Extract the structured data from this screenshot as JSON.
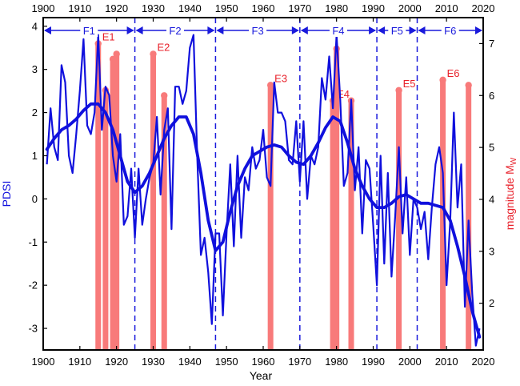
{
  "chart_data": {
    "type": "line",
    "xlabel": "Year",
    "ylabel_left": "PDSI",
    "ylabel_right": {
      "main": "magnitude M",
      "sub": "W"
    },
    "xlim": [
      1900,
      2020
    ],
    "ylim_left": [
      -3.5,
      4.2
    ],
    "ylim_right": [
      1.1,
      7.5
    ],
    "x_ticks": [
      "1900",
      "1910",
      "1920",
      "1930",
      "1940",
      "1950",
      "1960",
      "1970",
      "1980",
      "1990",
      "2000",
      "2010",
      "2020"
    ],
    "y_left_ticks": [
      "-3",
      "-2",
      "-1",
      "0",
      "1",
      "2",
      "3",
      "4"
    ],
    "y_right_ticks": [
      "2",
      "3",
      "4",
      "5",
      "6",
      "7"
    ],
    "colors": {
      "pdsi": "#1010dd",
      "event": "#f87a7a",
      "event_label": "#e8202a",
      "phase": "#1a1adc"
    },
    "phases": [
      {
        "label": "F1",
        "start": 1900,
        "end": 1925
      },
      {
        "label": "F2",
        "start": 1925,
        "end": 1947
      },
      {
        "label": "F3",
        "start": 1947,
        "end": 1970
      },
      {
        "label": "F4",
        "start": 1970,
        "end": 1991
      },
      {
        "label": "F5",
        "start": 1991,
        "end": 2002
      },
      {
        "label": "F6",
        "start": 2002,
        "end": 2020
      }
    ],
    "events": [
      {
        "label": "E1",
        "year": 1915,
        "magnitude": 7.0
      },
      {
        "label": "",
        "year": 1917,
        "magnitude": 6.1
      },
      {
        "label": "",
        "year": 1919,
        "magnitude": 6.7
      },
      {
        "label": "",
        "year": 1920,
        "magnitude": 6.8
      },
      {
        "label": "E2",
        "year": 1930,
        "magnitude": 6.8
      },
      {
        "label": "",
        "year": 1933,
        "magnitude": 6.0
      },
      {
        "label": "E3",
        "year": 1962,
        "magnitude": 6.2
      },
      {
        "label": "E4",
        "year": 1979,
        "magnitude": 5.9
      },
      {
        "label": "",
        "year": 1980,
        "magnitude": 6.9
      },
      {
        "label": "",
        "year": 1984,
        "magnitude": 5.9
      },
      {
        "label": "E5",
        "year": 1997,
        "magnitude": 6.1
      },
      {
        "label": "E6",
        "year": 2009,
        "magnitude": 6.3
      },
      {
        "label": "",
        "year": 2016,
        "magnitude": 6.2
      }
    ],
    "series": [
      {
        "name": "PDSI annual",
        "x": [
          1901,
          1902,
          1903,
          1904,
          1905,
          1906,
          1907,
          1908,
          1909,
          1910,
          1911,
          1912,
          1913,
          1914,
          1915,
          1916,
          1917,
          1918,
          1919,
          1920,
          1921,
          1922,
          1923,
          1924,
          1925,
          1926,
          1927,
          1928,
          1929,
          1930,
          1931,
          1932,
          1933,
          1934,
          1935,
          1936,
          1937,
          1938,
          1939,
          1940,
          1941,
          1942,
          1943,
          1944,
          1945,
          1946,
          1947,
          1948,
          1949,
          1950,
          1951,
          1952,
          1953,
          1954,
          1955,
          1956,
          1957,
          1958,
          1959,
          1960,
          1961,
          1962,
          1963,
          1964,
          1965,
          1966,
          1967,
          1968,
          1969,
          1970,
          1971,
          1972,
          1973,
          1974,
          1975,
          1976,
          1977,
          1978,
          1979,
          1980,
          1981,
          1982,
          1983,
          1984,
          1985,
          1986,
          1987,
          1988,
          1989,
          1990,
          1991,
          1992,
          1993,
          1994,
          1995,
          1996,
          1997,
          1998,
          1999,
          2000,
          2001,
          2002,
          2003,
          2004,
          2005,
          2006,
          2007,
          2008,
          2009,
          2010,
          2011,
          2012,
          2013,
          2014,
          2015,
          2016,
          2017,
          2018,
          2019
        ],
        "values": [
          0.8,
          2.1,
          1.2,
          0.9,
          3.1,
          2.7,
          1.0,
          0.6,
          1.5,
          2.5,
          3.7,
          1.7,
          1.5,
          2.0,
          3.8,
          1.6,
          2.6,
          2.4,
          1.0,
          0.4,
          1.5,
          -0.6,
          -0.4,
          0.7,
          -0.9,
          0.7,
          -0.6,
          0.0,
          0.5,
          0.8,
          1.9,
          0.1,
          1.6,
          2.1,
          -0.7,
          2.6,
          2.6,
          2.2,
          2.5,
          3.5,
          3.8,
          1.0,
          -1.3,
          -0.9,
          -1.7,
          -2.9,
          -0.8,
          -0.8,
          -2.7,
          -0.8,
          0.8,
          -1.1,
          1.0,
          -0.9,
          0.5,
          0.2,
          1.2,
          0.7,
          0.9,
          1.6,
          0.5,
          0.3,
          2.7,
          2.0,
          2.0,
          1.8,
          0.9,
          0.8,
          1.8,
          0.4,
          1.8,
          0.0,
          1.0,
          0.8,
          1.2,
          2.8,
          2.3,
          3.3,
          2.1,
          3.8,
          2.3,
          0.3,
          0.6,
          2.3,
          0.2,
          1.2,
          -0.8,
          0.9,
          0.7,
          -0.6,
          -2.0,
          1.0,
          -1.5,
          0.6,
          -1.8,
          -0.4,
          1.2,
          -0.8,
          0.5,
          -1.3,
          0.0,
          -0.2,
          -0.7,
          -0.3,
          -1.4,
          -0.2,
          0.8,
          1.2,
          0.6,
          -2.0,
          -0.5,
          2.0,
          -0.2,
          0.8,
          -2.5,
          -0.5,
          -2.2,
          -3.4,
          -3.0
        ]
      },
      {
        "name": "PDSI smoothed",
        "x": [
          1901,
          1903,
          1905,
          1907,
          1909,
          1911,
          1913,
          1915,
          1917,
          1919,
          1921,
          1923,
          1925,
          1927,
          1929,
          1931,
          1933,
          1935,
          1937,
          1939,
          1941,
          1943,
          1945,
          1947,
          1949,
          1951,
          1953,
          1955,
          1957,
          1959,
          1961,
          1963,
          1965,
          1967,
          1969,
          1971,
          1973,
          1975,
          1977,
          1979,
          1981,
          1983,
          1985,
          1987,
          1989,
          1991,
          1993,
          1995,
          1997,
          1999,
          2001,
          2003,
          2005,
          2007,
          2009,
          2011,
          2013,
          2015,
          2017,
          2019
        ],
        "values": [
          1.15,
          1.4,
          1.6,
          1.7,
          1.85,
          2.05,
          2.2,
          2.2,
          2.0,
          1.6,
          1.0,
          0.4,
          0.15,
          0.3,
          0.6,
          1.0,
          1.4,
          1.7,
          1.9,
          1.9,
          1.5,
          0.6,
          -0.5,
          -1.2,
          -1.0,
          -0.3,
          0.3,
          0.7,
          1.0,
          1.1,
          1.2,
          1.25,
          1.2,
          1.0,
          0.85,
          0.8,
          1.0,
          1.3,
          1.65,
          1.9,
          1.8,
          1.3,
          0.7,
          0.3,
          0.0,
          -0.2,
          -0.2,
          -0.1,
          0.05,
          0.1,
          0.0,
          -0.1,
          -0.1,
          -0.15,
          -0.2,
          -0.5,
          -1.1,
          -1.8,
          -2.6,
          -3.2
        ]
      }
    ]
  }
}
